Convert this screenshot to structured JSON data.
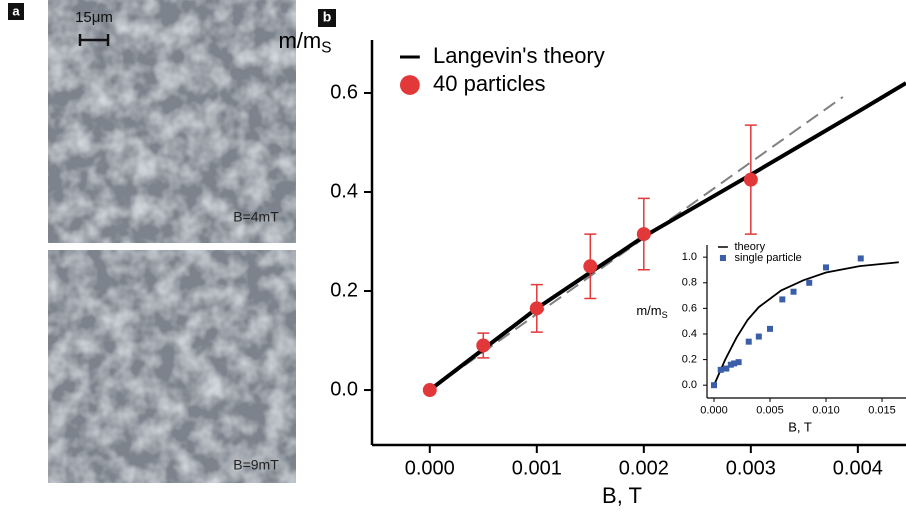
{
  "panel_a": {
    "label": "a",
    "scale_bar": "15μm",
    "top_image_label": "B=4mT",
    "bottom_image_label": "B=9mT"
  },
  "chart_data": [
    {
      "type": "line",
      "panel_label": "b",
      "xlabel": "B, T",
      "ylabel": "m/m",
      "ylabel_subscript": "S",
      "xlim": [
        -0.00054,
        0.00445
      ],
      "ylim": [
        -0.111,
        0.707
      ],
      "xticks": [
        {
          "value": 0,
          "label": "0.000"
        },
        {
          "value": 0.001,
          "label": "0.001"
        },
        {
          "value": 0.002,
          "label": "0.002"
        },
        {
          "value": 0.003,
          "label": "0.003"
        },
        {
          "value": 0.004,
          "label": "0.004"
        }
      ],
      "yticks": [
        {
          "value": 0,
          "label": "0.0"
        },
        0.2,
        0.4,
        0.6
      ],
      "legend": "upper left",
      "series": [
        {
          "kind": "line",
          "style": "dashed",
          "color": "#808080",
          "x": [
            0,
            0.00386
          ],
          "values": [
            0,
            0.592
          ]
        },
        {
          "name": "Langevin's theory",
          "kind": "line",
          "style": "solid",
          "color": "#000000",
          "x": [
            0,
            0.001,
            0.002,
            0.003,
            0.004,
            0.00445
          ],
          "values": [
            0,
            0.165,
            0.31,
            0.435,
            0.562,
            0.62
          ]
        },
        {
          "name": "40 particles",
          "kind": "scatter",
          "marker": "circle",
          "color": "#e2383a",
          "x": [
            0,
            0.0005,
            0.001,
            0.0015,
            0.002,
            0.003
          ],
          "values": [
            0,
            0.09,
            0.165,
            0.25,
            0.315,
            0.425
          ],
          "errors": [
            0,
            0.025,
            0.048,
            0.065,
            0.072,
            0.11
          ]
        }
      ]
    },
    {
      "type": "line",
      "xlabel": "B, T",
      "ylabel": "m/m",
      "ylabel_subscript": "S",
      "xlim": [
        -0.000625,
        0.01714
      ],
      "ylim": [
        -0.1,
        1.095
      ],
      "xticks": [
        {
          "value": 0,
          "label": "0.000"
        },
        {
          "value": 0.005,
          "label": "0.005"
        },
        {
          "value": 0.01,
          "label": "0.010"
        },
        {
          "value": 0.015,
          "label": "0.015"
        }
      ],
      "yticks": [
        {
          "value": 0,
          "label": "0.0"
        },
        0.2,
        0.4,
        0.6,
        0.8,
        {
          "value": 1,
          "label": "1.0"
        }
      ],
      "legend": "upper left",
      "series": [
        {
          "name": "theory",
          "kind": "line",
          "style": "solid",
          "color": "#000000",
          "x": [
            0,
            0.001,
            0.002,
            0.003,
            0.004,
            0.006,
            0.008,
            0.01,
            0.013,
            0.0165
          ],
          "values": [
            0,
            0.2,
            0.37,
            0.51,
            0.61,
            0.74,
            0.82,
            0.88,
            0.93,
            0.96
          ]
        },
        {
          "name": "single particle",
          "kind": "scatter",
          "marker": "square",
          "color": "#3b5ea8",
          "x": [
            0,
            0.0006,
            0.0011,
            0.0015,
            0.0018,
            0.0022,
            0.0031,
            0.004,
            0.005,
            0.0061,
            0.0071,
            0.0085,
            0.01,
            0.0131
          ],
          "values": [
            0,
            0.12,
            0.13,
            0.16,
            0.17,
            0.18,
            0.34,
            0.38,
            0.44,
            0.67,
            0.73,
            0.8,
            0.92,
            0.99
          ]
        }
      ]
    }
  ]
}
